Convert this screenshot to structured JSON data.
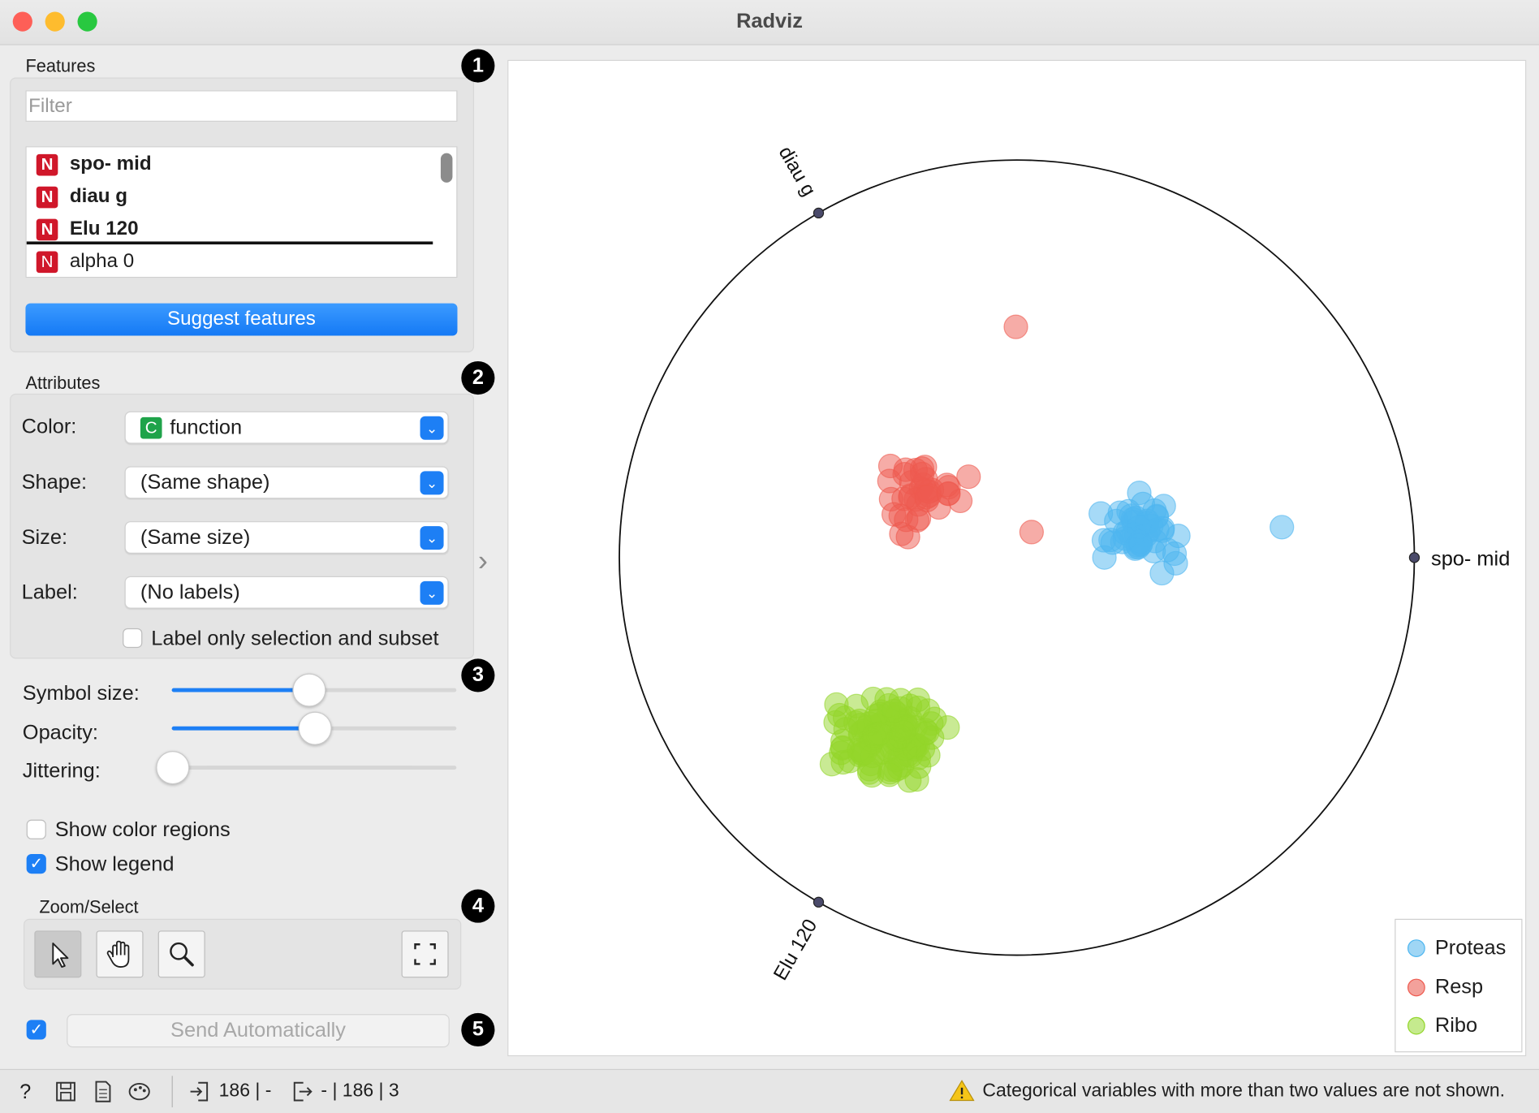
{
  "window": {
    "title": "Radviz"
  },
  "features": {
    "group_label": "Features",
    "filter_placeholder": "Filter",
    "items": [
      {
        "tag": "N",
        "label": "spo- mid",
        "bold": true
      },
      {
        "tag": "N",
        "label": "diau g",
        "bold": true
      },
      {
        "tag": "N",
        "label": "Elu 120",
        "bold": true
      },
      {
        "tag": "N",
        "label": "alpha 0",
        "bold": false
      }
    ],
    "suggest_label": "Suggest features"
  },
  "attributes": {
    "group_label": "Attributes",
    "color_label": "Color:",
    "color_tag": "C",
    "color_value": "function",
    "shape_label": "Shape:",
    "shape_value": "(Same shape)",
    "size_label": "Size:",
    "size_value": "(Same size)",
    "label_label": "Label:",
    "label_value": "(No labels)",
    "label_only_text": "Label only selection and subset",
    "label_only_checked": false
  },
  "visual": {
    "symbol_size_label": "Symbol size:",
    "symbol_size": 0.48,
    "opacity_label": "Opacity:",
    "opacity": 0.5,
    "jittering_label": "Jittering:",
    "jittering": 0.0,
    "show_color_regions_label": "Show color regions",
    "show_color_regions": false,
    "show_legend_label": "Show legend",
    "show_legend": true
  },
  "zoom": {
    "group_label": "Zoom/Select",
    "tools": [
      "pointer-icon",
      "hand-icon",
      "magnifier-icon",
      "fit-icon"
    ]
  },
  "send": {
    "label": "Send Automatically",
    "checked": true
  },
  "badges": [
    "1",
    "2",
    "3",
    "4",
    "5"
  ],
  "plot": {
    "anchors": [
      {
        "label": "spo- mid"
      },
      {
        "label": "diau g"
      },
      {
        "label": "Elu 120"
      }
    ],
    "legend": [
      {
        "label": "Proteas",
        "color": "#4eb6f0"
      },
      {
        "label": "Resp",
        "color": "#ee5a4f"
      },
      {
        "label": "Ribo",
        "color": "#93d62a"
      }
    ]
  },
  "status": {
    "input_summary": "186 | -",
    "output_summary": "- | 186 | 3",
    "warning": "Categorical variables with more than two values are not shown."
  },
  "colors": {
    "accent": "#1d7ff5",
    "numeric_tag": "#d0172a",
    "categorical_tag": "#1fa34a"
  }
}
